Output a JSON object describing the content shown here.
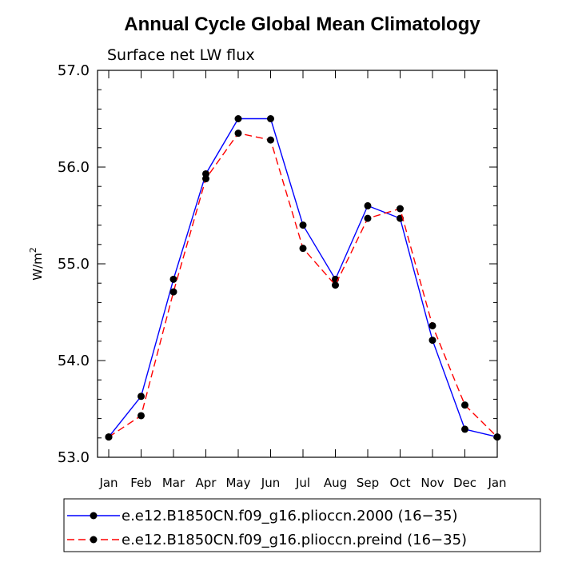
{
  "chart_data": {
    "type": "line",
    "title": "Annual Cycle Global Mean Climatology",
    "subtitle": "Surface net LW flux",
    "xlabel": "",
    "ylabel": "W/m",
    "ylabel_superscript": "2",
    "categories": [
      "Jan",
      "Feb",
      "Mar",
      "Apr",
      "May",
      "Jun",
      "Jul",
      "Aug",
      "Sep",
      "Oct",
      "Nov",
      "Dec",
      "Jan"
    ],
    "ylim": [
      53.0,
      57.0
    ],
    "yticks": [
      "53.0",
      "54.0",
      "55.0",
      "56.0",
      "57.0"
    ],
    "series": [
      {
        "name": "e.e12.B1850CN.f09_g16.plioccn.2000 (16−35)",
        "color": "#0000ff",
        "dash": "solid",
        "values": [
          53.21,
          53.63,
          54.84,
          55.93,
          56.5,
          56.5,
          55.4,
          54.84,
          55.6,
          55.47,
          54.21,
          53.29,
          53.21
        ]
      },
      {
        "name": "e.e12.B1850CN.f09_g16.plioccn.preind (16−35)",
        "color": "#ff0000",
        "dash": "dashed",
        "values": [
          53.21,
          53.43,
          54.71,
          55.88,
          56.35,
          56.28,
          55.16,
          54.78,
          55.47,
          55.57,
          54.36,
          53.54,
          53.21
        ]
      }
    ],
    "legend_position": "bottom",
    "grid": false
  }
}
